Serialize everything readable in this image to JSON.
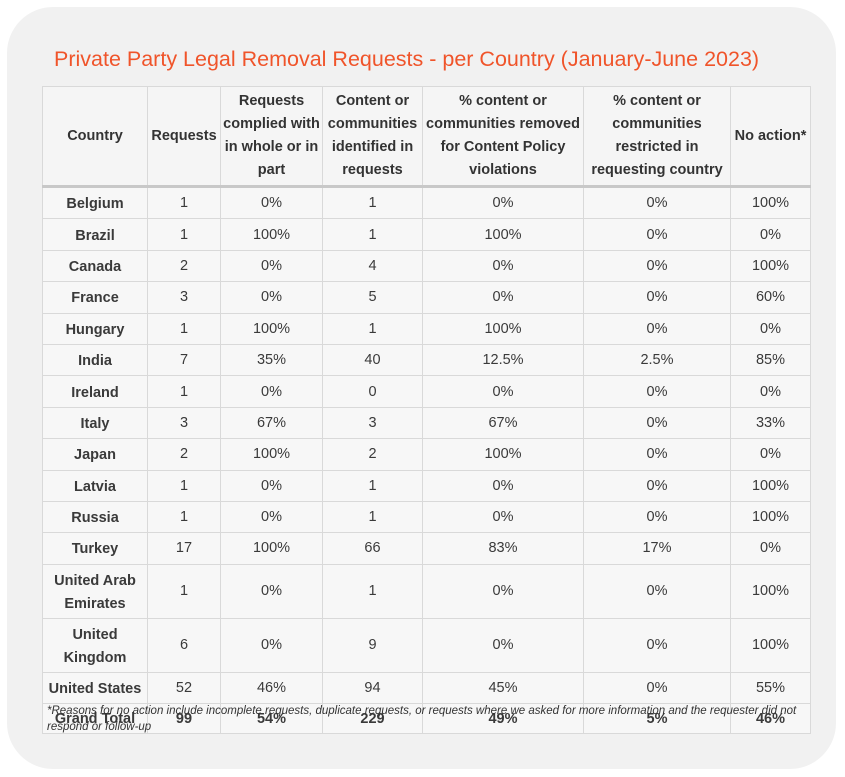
{
  "title": "Private Party Legal Removal Requests - per Country (January-June 2023)",
  "columns": [
    "Country",
    "Requests",
    "Requests complied with in whole or in part",
    "Content or communities identified in requests",
    "% content or communities removed for Content Policy violations",
    "% content or communities restricted in requesting country",
    "No action*"
  ],
  "rows": [
    [
      "Belgium",
      "1",
      "0%",
      "1",
      "0%",
      "0%",
      "100%"
    ],
    [
      "Brazil",
      "1",
      "100%",
      "1",
      "100%",
      "0%",
      "0%"
    ],
    [
      "Canada",
      "2",
      "0%",
      "4",
      "0%",
      "0%",
      "100%"
    ],
    [
      "France",
      "3",
      "0%",
      "5",
      "0%",
      "0%",
      "60%"
    ],
    [
      "Hungary",
      "1",
      "100%",
      "1",
      "100%",
      "0%",
      "0%"
    ],
    [
      "India",
      "7",
      "35%",
      "40",
      "12.5%",
      "2.5%",
      "85%"
    ],
    [
      "Ireland",
      "1",
      "0%",
      "0",
      "0%",
      "0%",
      "0%"
    ],
    [
      "Italy",
      "3",
      "67%",
      "3",
      "67%",
      "0%",
      "33%"
    ],
    [
      "Japan",
      "2",
      "100%",
      "2",
      "100%",
      "0%",
      "0%"
    ],
    [
      "Latvia",
      "1",
      "0%",
      "1",
      "0%",
      "0%",
      "100%"
    ],
    [
      "Russia",
      "1",
      "0%",
      "1",
      "0%",
      "0%",
      "100%"
    ],
    [
      "Turkey",
      "17",
      "100%",
      "66",
      "83%",
      "17%",
      "0%"
    ],
    [
      "United Arab Emirates",
      "1",
      "0%",
      "1",
      "0%",
      "0%",
      "100%"
    ],
    [
      "United Kingdom",
      "6",
      "0%",
      "9",
      "0%",
      "0%",
      "100%"
    ],
    [
      "United States",
      "52",
      "46%",
      "94",
      "45%",
      "0%",
      "55%"
    ]
  ],
  "total": [
    "Grand Total",
    "99",
    "54%",
    "229",
    "49%",
    "5%",
    "46%"
  ],
  "footnote": "*Reasons for no action include incomplete requests, duplicate requests, or requests where we asked for more information and the requester did not respond or follow-up",
  "colors": {
    "title": "#f0542a",
    "card": "#f1f1f1"
  }
}
